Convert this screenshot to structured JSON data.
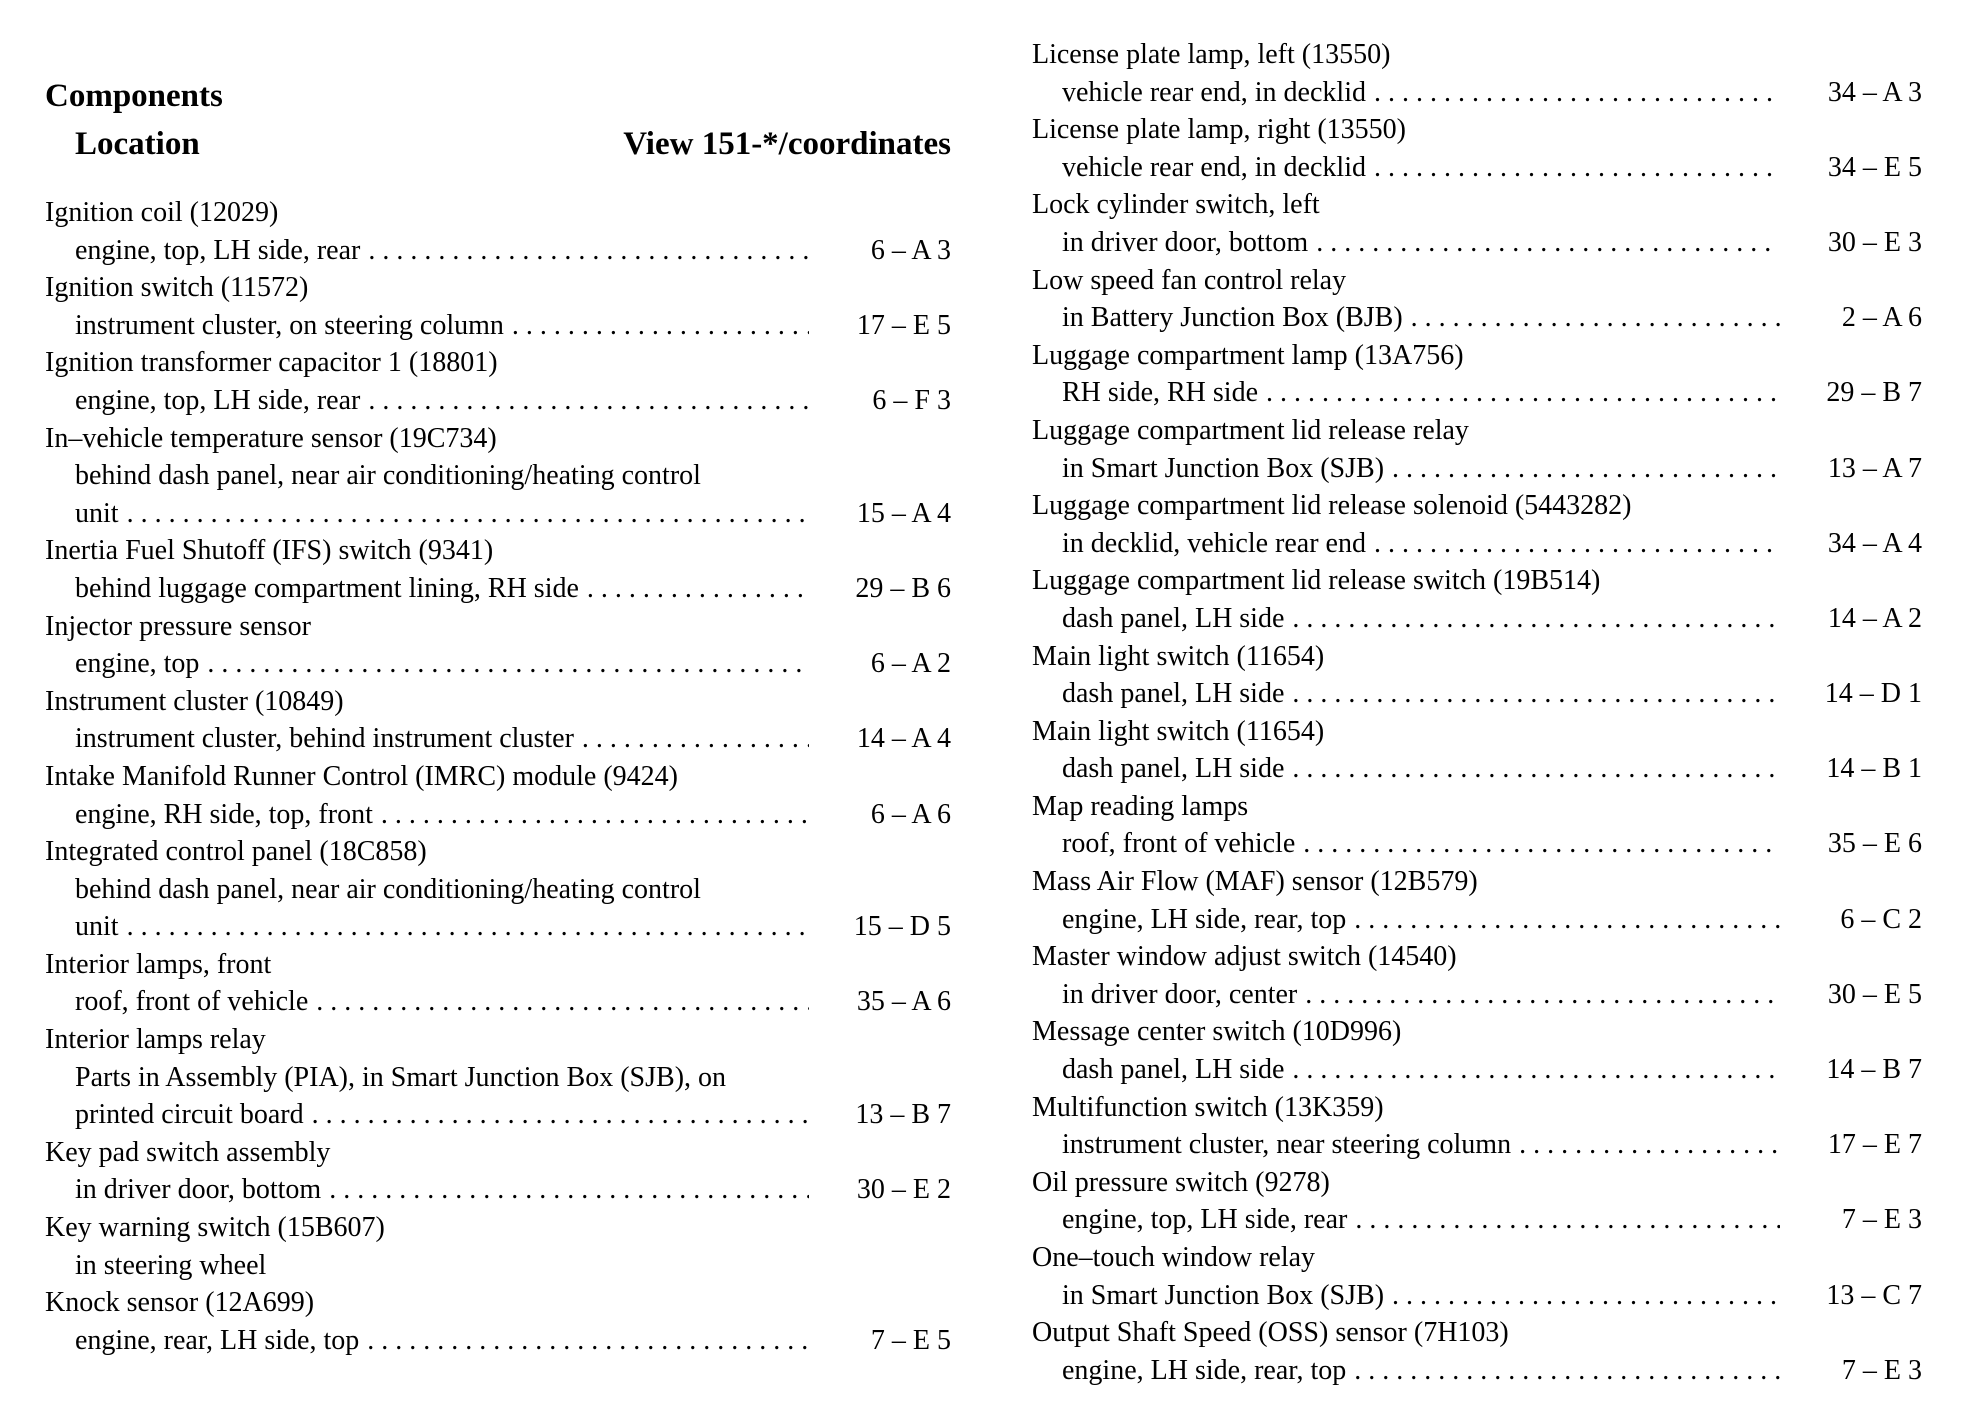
{
  "header": {
    "title": "Components",
    "subtitle": "Location",
    "view_label": "View 151-*/coordinates"
  },
  "colors": {
    "text": "#000000",
    "background": "#ffffff"
  },
  "columns": {
    "left": {
      "entries": [
        {
          "name": "Ignition coil (12029)",
          "locations": [
            {
              "text": "engine, top, LH side, rear",
              "leader": true,
              "coord": "6 – A 3"
            }
          ]
        },
        {
          "name": "Ignition switch (11572)",
          "locations": [
            {
              "text": "instrument cluster, on steering column",
              "leader": true,
              "coord": "17 – E 5"
            }
          ]
        },
        {
          "name": "Ignition transformer capacitor 1 (18801)",
          "locations": [
            {
              "text": "engine, top, LH side, rear",
              "leader": true,
              "coord": "6 – F 3"
            }
          ]
        },
        {
          "name": "In–vehicle temperature sensor (19C734)",
          "locations": [
            {
              "text": "behind dash panel, near air conditioning/heating control",
              "leader": false,
              "coord": null
            },
            {
              "text": "unit",
              "leader": true,
              "coord": "15 – A 4"
            }
          ]
        },
        {
          "name": "Inertia Fuel Shutoff (IFS) switch (9341)",
          "locations": [
            {
              "text": "behind luggage compartment lining, RH side ",
              "leader": true,
              "coord": "29 – B 6"
            }
          ]
        },
        {
          "name": "Injector pressure sensor",
          "locations": [
            {
              "text": "engine, top",
              "leader": true,
              "coord": "6 – A 2"
            }
          ]
        },
        {
          "name": "Instrument cluster (10849)",
          "locations": [
            {
              "text": "instrument cluster, behind instrument cluster",
              "leader": true,
              "coord": "14 – A 4"
            }
          ]
        },
        {
          "name": "Intake Manifold Runner Control (IMRC) module (9424)",
          "locations": [
            {
              "text": "engine, RH side, top, front",
              "leader": true,
              "coord": "6 – A 6"
            }
          ]
        },
        {
          "name": "Integrated control panel (18C858)",
          "locations": [
            {
              "text": "behind dash panel, near air conditioning/heating control",
              "leader": false,
              "coord": null
            },
            {
              "text": "unit",
              "leader": true,
              "coord": "15 – D 5"
            }
          ]
        },
        {
          "name": "Interior lamps, front",
          "locations": [
            {
              "text": "roof, front of vehicle",
              "leader": true,
              "coord": "35 – A 6"
            }
          ]
        },
        {
          "name": "Interior lamps relay",
          "locations": [
            {
              "text": "Parts in Assembly (PIA), in Smart Junction Box (SJB), on",
              "leader": false,
              "coord": null
            },
            {
              "text": "printed circuit board",
              "leader": true,
              "coord": "13 – B 7"
            }
          ]
        },
        {
          "name": "Key pad switch assembly",
          "locations": [
            {
              "text": "in driver door, bottom",
              "leader": true,
              "coord": "30 – E 2"
            }
          ]
        },
        {
          "name": "Key warning switch (15B607)",
          "locations": [
            {
              "text": "in steering wheel",
              "leader": false,
              "coord": null
            }
          ]
        },
        {
          "name": "Knock sensor (12A699)",
          "locations": [
            {
              "text": "engine, rear, LH side, top",
              "leader": true,
              "coord": "7 – E 5"
            }
          ]
        }
      ]
    },
    "right": {
      "entries": [
        {
          "name": "License plate lamp, left (13550)",
          "locations": [
            {
              "text": "vehicle rear end, in decklid",
              "leader": true,
              "coord": "34 – A 3"
            }
          ]
        },
        {
          "name": "License plate lamp, right (13550)",
          "locations": [
            {
              "text": "vehicle rear end, in decklid",
              "leader": true,
              "coord": "34 – E 5"
            }
          ]
        },
        {
          "name": "Lock cylinder switch, left",
          "locations": [
            {
              "text": "in driver door, bottom",
              "leader": true,
              "coord": "30 – E 3"
            }
          ]
        },
        {
          "name": "Low speed fan control relay",
          "locations": [
            {
              "text": "in Battery Junction Box (BJB)",
              "leader": true,
              "coord": "2 – A 6"
            }
          ]
        },
        {
          "name": "Luggage compartment lamp (13A756)",
          "locations": [
            {
              "text": "RH side, RH side ",
              "leader": true,
              "coord": "29 – B 7"
            }
          ]
        },
        {
          "name": "Luggage compartment lid release relay",
          "locations": [
            {
              "text": "in Smart Junction Box (SJB)",
              "leader": true,
              "coord": "13 – A 7"
            }
          ]
        },
        {
          "name": "Luggage compartment lid release solenoid (5443282)",
          "locations": [
            {
              "text": "in decklid, vehicle rear end",
              "leader": true,
              "coord": "34 – A 4"
            }
          ]
        },
        {
          "name": "Luggage compartment lid release switch (19B514)",
          "locations": [
            {
              "text": "dash panel, LH side",
              "leader": true,
              "coord": "14 – A 2"
            }
          ]
        },
        {
          "name": "Main light switch (11654)",
          "locations": [
            {
              "text": "dash panel, LH side",
              "leader": true,
              "coord": "14 – D 1"
            }
          ]
        },
        {
          "name": "Main light switch (11654)",
          "locations": [
            {
              "text": "dash panel, LH side",
              "leader": true,
              "coord": "14 – B 1"
            }
          ]
        },
        {
          "name": "Map reading lamps",
          "locations": [
            {
              "text": "roof, front of vehicle",
              "leader": true,
              "coord": "35 – E 6"
            }
          ]
        },
        {
          "name": "Mass Air Flow (MAF) sensor (12B579)",
          "locations": [
            {
              "text": "engine, LH side, rear, top",
              "leader": true,
              "coord": "6 – C 2"
            }
          ]
        },
        {
          "name": "Master window adjust switch (14540)",
          "locations": [
            {
              "text": "in driver door, center",
              "leader": true,
              "coord": "30 – E 5"
            }
          ]
        },
        {
          "name": "Message center switch (10D996)",
          "locations": [
            {
              "text": "dash panel, LH side",
              "leader": true,
              "coord": "14 – B 7"
            }
          ]
        },
        {
          "name": "Multifunction switch (13K359)",
          "locations": [
            {
              "text": "instrument cluster, near steering column ",
              "leader": true,
              "coord": "17 – E 7"
            }
          ]
        },
        {
          "name": "Oil pressure switch (9278)",
          "locations": [
            {
              "text": "engine, top, LH side, rear",
              "leader": true,
              "coord": "7 – E 3"
            }
          ]
        },
        {
          "name": "One–touch window relay",
          "locations": [
            {
              "text": "in Smart Junction Box (SJB)",
              "leader": true,
              "coord": "13 – C 7"
            }
          ]
        },
        {
          "name": "Output Shaft Speed (OSS) sensor (7H103)",
          "locations": [
            {
              "text": "engine, LH side, rear, top",
              "leader": true,
              "coord": "7 – E 3"
            }
          ]
        }
      ]
    }
  }
}
